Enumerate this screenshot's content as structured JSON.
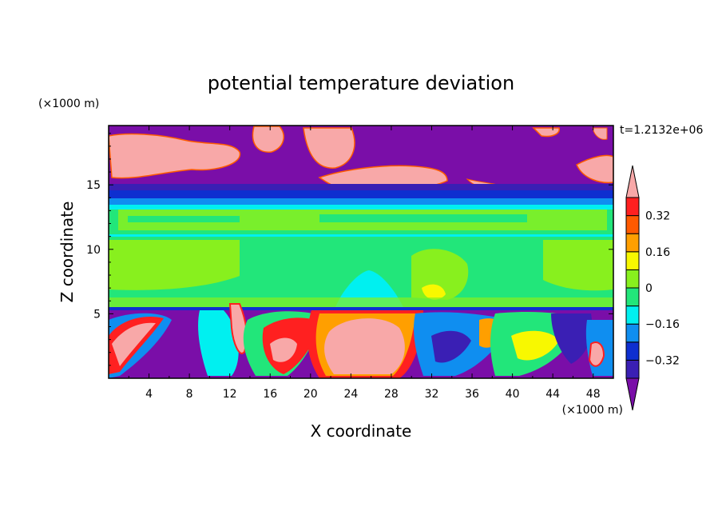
{
  "chart_data": {
    "type": "heatmap",
    "title": "potential temperature deviation",
    "xlabel": "X coordinate",
    "ylabel": "Z coordinate",
    "x_units": "(×1000 m)",
    "y_units": "(×1000 m)",
    "time_label": "t=1.2132e+06",
    "xlim": [
      0,
      50
    ],
    "ylim": [
      0,
      19.6
    ],
    "x_ticks": [
      4,
      8,
      12,
      16,
      20,
      24,
      28,
      32,
      36,
      40,
      44,
      48
    ],
    "y_ticks": [
      5,
      10,
      15
    ],
    "colorbar": {
      "levels": [
        -0.4,
        -0.32,
        -0.24,
        -0.16,
        -0.08,
        0,
        0.08,
        0.16,
        0.24,
        0.32,
        0.4
      ],
      "tick_labels": [
        "0.32",
        "0.16",
        "0",
        "−0.16",
        "−0.32"
      ],
      "tick_values": [
        0.32,
        0.16,
        0,
        -0.16,
        -0.32
      ],
      "colors": [
        "#7a0ea8",
        "#3a1fb4",
        "#0e2fd0",
        "#0f8ef0",
        "#00f0f0",
        "#22e67a",
        "#88f01e",
        "#f8f800",
        "#ff9f00",
        "#ff5a00",
        "#ff2020",
        "#f8a8a8"
      ]
    },
    "regions": [
      {
        "band": "upper layer z>15",
        "value": -0.4,
        "note": "purple background with pink warm patches"
      },
      {
        "band": "stable band z≈15",
        "value": -0.3
      },
      {
        "band": "mid troposphere 6–14",
        "value": 0.02
      },
      {
        "band": "boundary layer z<5.6",
        "value": -0.4,
        "note": "convective cells with warm plumes"
      }
    ]
  }
}
